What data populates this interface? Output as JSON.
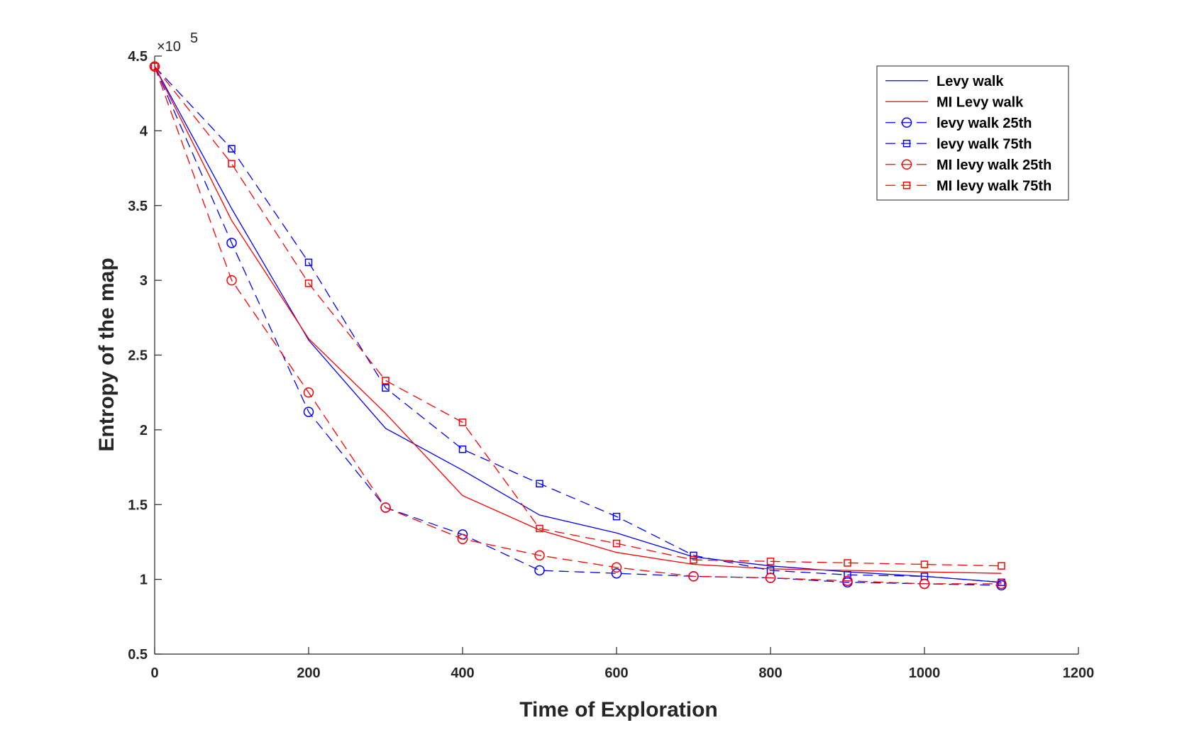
{
  "chart_data": {
    "type": "line",
    "title": "",
    "xlabel": "Time of Exploration",
    "ylabel": "Entropy of the map",
    "xlim": [
      0,
      1200
    ],
    "ylim": [
      50000,
      450000
    ],
    "xticks": [
      0,
      200,
      400,
      600,
      800,
      1000,
      1200
    ],
    "yticks": [
      50000,
      100000,
      150000,
      200000,
      250000,
      300000,
      350000,
      400000,
      450000
    ],
    "xtick_labels": [
      "0",
      "200",
      "400",
      "600",
      "800",
      "1000",
      "1200"
    ],
    "ytick_labels": [
      "0.5",
      "1",
      "1.5",
      "2",
      "2.5",
      "3",
      "3.5",
      "4",
      "4.5"
    ],
    "y_exponent_label": "×10",
    "y_exponent_power": "5",
    "grid": false,
    "legend_position": "top-right",
    "x": [
      0,
      100,
      200,
      300,
      400,
      500,
      600,
      700,
      800,
      900,
      1000,
      1100
    ],
    "series": [
      {
        "name": "Levy walk",
        "color": "#0000ff",
        "dash": "solid",
        "marker": "none",
        "values": [
          443000,
          348000,
          260000,
          201000,
          173000,
          143000,
          131000,
          115000,
          109000,
          105000,
          102000,
          98000
        ]
      },
      {
        "name": "MI Levy walk",
        "color": "#ff0000",
        "dash": "solid",
        "marker": "none",
        "values": [
          443000,
          340000,
          261000,
          211000,
          156000,
          133000,
          118000,
          110000,
          107000,
          106000,
          105000,
          104000
        ]
      },
      {
        "name": "levy walk 25th",
        "color": "#0000ff",
        "dash": "dashed",
        "marker": "circle",
        "values": [
          443000,
          325000,
          212000,
          148000,
          130000,
          106000,
          104000,
          102000,
          101000,
          98000,
          97000,
          96000
        ]
      },
      {
        "name": "levy walk 75th",
        "color": "#0000ff",
        "dash": "dashed",
        "marker": "square",
        "values": [
          443000,
          388000,
          312000,
          228000,
          187000,
          164000,
          142000,
          116000,
          106000,
          103000,
          102000,
          98000
        ]
      },
      {
        "name": "MI levy walk 25th",
        "color": "#ff0000",
        "dash": "dashed",
        "marker": "circle",
        "values": [
          443000,
          300000,
          225000,
          148000,
          127000,
          116000,
          108000,
          102000,
          101000,
          99000,
          97000,
          97000
        ]
      },
      {
        "name": "MI levy walk 75th",
        "color": "#ff0000",
        "dash": "dashed",
        "marker": "square",
        "values": [
          443000,
          378000,
          298000,
          233000,
          205000,
          134000,
          124000,
          113000,
          112000,
          111000,
          110000,
          109000
        ]
      }
    ]
  }
}
